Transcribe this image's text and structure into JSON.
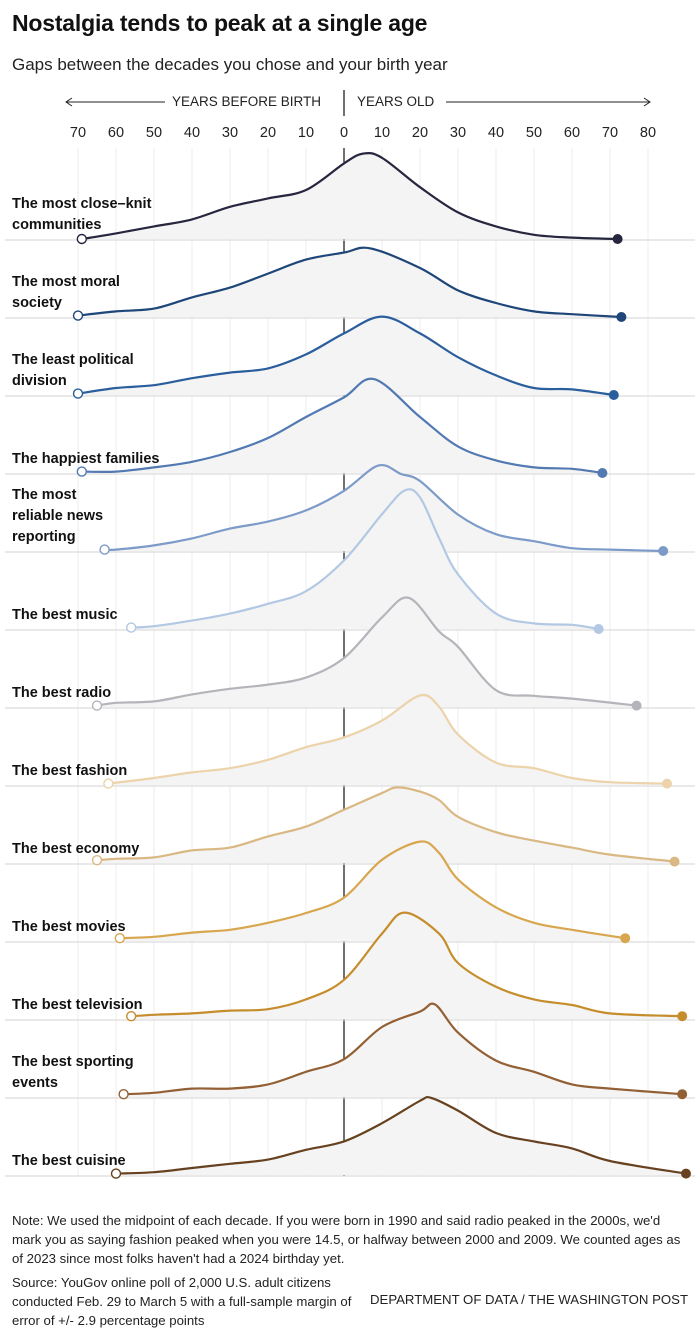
{
  "title": "Nostalgia tends to peak at a single age",
  "subtitle": "Gaps between the decades you chose and your birth year",
  "note": "Note: We used the midpoint of each decade. If you were born in 1990 and said radio peaked in the 2000s, we'd mark you as saying fashion peaked when you were 14.5, or halfway between 2000 and 2009. We counted ages as of 2023 since most folks haven't had a 2024 birthday yet.",
  "source": "Source: YouGov online poll of 2,000 U.S. adult citizens conducted Feb. 29 to March 5 with a full-sample margin of error of +/- 2.9 percentage points",
  "credit": "DEPARTMENT OF DATA / THE WASHINGTON POST",
  "chart_data": {
    "type": "area",
    "subtype": "ridgeline",
    "xlabel_left": "YEARS BEFORE BIRTH",
    "xlabel_right": "YEARS OLD",
    "xlim": [
      -70,
      80
    ],
    "x_ticks": [
      -70,
      -60,
      -50,
      -40,
      -30,
      -20,
      -10,
      0,
      10,
      20,
      30,
      40,
      50,
      60,
      70,
      80
    ],
    "x_tick_labels": [
      "70",
      "60",
      "50",
      "40",
      "30",
      "20",
      "10",
      "0",
      "10",
      "20",
      "30",
      "40",
      "50",
      "60",
      "70",
      "80"
    ],
    "y_units": "relative density (0-100, unlabeled)",
    "grid": "vertical",
    "fill_color": "#f4f4f4",
    "series": [
      {
        "name": "The most close–knit communities",
        "color": "#27263f",
        "points": [
          [
            -69,
            0
          ],
          [
            -60,
            4
          ],
          [
            -50,
            9
          ],
          [
            -40,
            14
          ],
          [
            -30,
            23
          ],
          [
            -20,
            29
          ],
          [
            -10,
            35
          ],
          [
            0,
            54
          ],
          [
            5,
            61
          ],
          [
            10,
            58
          ],
          [
            20,
            37
          ],
          [
            30,
            19
          ],
          [
            40,
            9
          ],
          [
            50,
            3
          ],
          [
            60,
            1
          ],
          [
            72,
            0
          ]
        ]
      },
      {
        "name": "The most moral society",
        "color": "#1e4678",
        "points": [
          [
            -70,
            1
          ],
          [
            -60,
            4
          ],
          [
            -50,
            6
          ],
          [
            -40,
            14
          ],
          [
            -30,
            21
          ],
          [
            -20,
            31
          ],
          [
            -10,
            41
          ],
          [
            0,
            46
          ],
          [
            7,
            49
          ],
          [
            20,
            35
          ],
          [
            30,
            19
          ],
          [
            40,
            10
          ],
          [
            50,
            4
          ],
          [
            60,
            2
          ],
          [
            73,
            0
          ]
        ]
      },
      {
        "name": "The least political division",
        "color": "#2a5e9c",
        "points": [
          [
            -70,
            1
          ],
          [
            -60,
            5
          ],
          [
            -50,
            7
          ],
          [
            -40,
            12
          ],
          [
            -30,
            16
          ],
          [
            -20,
            19
          ],
          [
            -10,
            29
          ],
          [
            0,
            44
          ],
          [
            10,
            56
          ],
          [
            20,
            44
          ],
          [
            30,
            27
          ],
          [
            40,
            14
          ],
          [
            50,
            5
          ],
          [
            60,
            4
          ],
          [
            71,
            0
          ]
        ]
      },
      {
        "name": "The happiest families",
        "color": "#5279b2",
        "points": [
          [
            -69,
            1
          ],
          [
            -60,
            1
          ],
          [
            -50,
            4
          ],
          [
            -40,
            8
          ],
          [
            -30,
            15
          ],
          [
            -20,
            25
          ],
          [
            -10,
            40
          ],
          [
            0,
            54
          ],
          [
            8,
            67
          ],
          [
            20,
            40
          ],
          [
            30,
            19
          ],
          [
            40,
            9
          ],
          [
            50,
            4
          ],
          [
            60,
            3
          ],
          [
            68,
            0
          ]
        ]
      },
      {
        "name": "The most reliable news reporting",
        "color": "#7d9bc8",
        "points": [
          [
            -63,
            1
          ],
          [
            -60,
            1
          ],
          [
            -50,
            4
          ],
          [
            -40,
            9
          ],
          [
            -30,
            16
          ],
          [
            -20,
            21
          ],
          [
            -10,
            29
          ],
          [
            0,
            43
          ],
          [
            9,
            61
          ],
          [
            15,
            55
          ],
          [
            20,
            50
          ],
          [
            30,
            26
          ],
          [
            40,
            12
          ],
          [
            50,
            7
          ],
          [
            60,
            2
          ],
          [
            70,
            1
          ],
          [
            84,
            0
          ]
        ]
      },
      {
        "name": "The best music",
        "color": "#b2c8e3",
        "points": [
          [
            -56,
            1
          ],
          [
            -50,
            2
          ],
          [
            -40,
            6
          ],
          [
            -30,
            11
          ],
          [
            -20,
            18
          ],
          [
            -10,
            27
          ],
          [
            0,
            49
          ],
          [
            10,
            82
          ],
          [
            16,
            99
          ],
          [
            20,
            94
          ],
          [
            25,
            65
          ],
          [
            30,
            39
          ],
          [
            40,
            11
          ],
          [
            50,
            4
          ],
          [
            60,
            3
          ],
          [
            67,
            0
          ]
        ]
      },
      {
        "name": "The best radio",
        "color": "#b4b4ba",
        "points": [
          [
            -65,
            1
          ],
          [
            -60,
            3
          ],
          [
            -50,
            4
          ],
          [
            -40,
            9
          ],
          [
            -30,
            13
          ],
          [
            -20,
            16
          ],
          [
            -10,
            21
          ],
          [
            0,
            35
          ],
          [
            10,
            64
          ],
          [
            17,
            78
          ],
          [
            25,
            54
          ],
          [
            30,
            43
          ],
          [
            40,
            12
          ],
          [
            50,
            8
          ],
          [
            60,
            6
          ],
          [
            77,
            1
          ]
        ]
      },
      {
        "name": "The best fashion",
        "color": "#ecd3aa",
        "points": [
          [
            -62,
            1
          ],
          [
            -50,
            5
          ],
          [
            -40,
            9
          ],
          [
            -30,
            12
          ],
          [
            -20,
            18
          ],
          [
            -10,
            27
          ],
          [
            0,
            34
          ],
          [
            10,
            46
          ],
          [
            20,
            64
          ],
          [
            25,
            56
          ],
          [
            30,
            36
          ],
          [
            40,
            16
          ],
          [
            50,
            12
          ],
          [
            60,
            5
          ],
          [
            70,
            2
          ],
          [
            85,
            1
          ]
        ]
      },
      {
        "name": "The best economy",
        "color": "#dab883",
        "points": [
          [
            -65,
            2
          ],
          [
            -60,
            3
          ],
          [
            -50,
            4
          ],
          [
            -40,
            9
          ],
          [
            -30,
            11
          ],
          [
            -20,
            19
          ],
          [
            -10,
            26
          ],
          [
            0,
            38
          ],
          [
            10,
            50
          ],
          [
            14,
            54
          ],
          [
            20,
            51
          ],
          [
            25,
            45
          ],
          [
            30,
            33
          ],
          [
            40,
            22
          ],
          [
            50,
            16
          ],
          [
            60,
            11
          ],
          [
            70,
            6
          ],
          [
            87,
            1
          ]
        ]
      },
      {
        "name": "The best movies",
        "color": "#d8a64e",
        "points": [
          [
            -59,
            2
          ],
          [
            -50,
            3
          ],
          [
            -40,
            6
          ],
          [
            -30,
            8
          ],
          [
            -20,
            13
          ],
          [
            -10,
            20
          ],
          [
            0,
            31
          ],
          [
            10,
            58
          ],
          [
            20,
            71
          ],
          [
            25,
            63
          ],
          [
            30,
            44
          ],
          [
            40,
            24
          ],
          [
            50,
            13
          ],
          [
            60,
            8
          ],
          [
            74,
            2
          ]
        ]
      },
      {
        "name": "The best television",
        "color": "#c58d2c",
        "points": [
          [
            -56,
            2
          ],
          [
            -50,
            3
          ],
          [
            -40,
            4
          ],
          [
            -30,
            6
          ],
          [
            -20,
            7
          ],
          [
            -10,
            14
          ],
          [
            0,
            28
          ],
          [
            10,
            61
          ],
          [
            16,
            76
          ],
          [
            25,
            61
          ],
          [
            30,
            40
          ],
          [
            40,
            23
          ],
          [
            50,
            14
          ],
          [
            60,
            10
          ],
          [
            70,
            4
          ],
          [
            89,
            2
          ]
        ]
      },
      {
        "name": "The best sporting events",
        "color": "#936035",
        "points": [
          [
            -58,
            2
          ],
          [
            -50,
            3
          ],
          [
            -40,
            6
          ],
          [
            -30,
            6
          ],
          [
            -20,
            9
          ],
          [
            -10,
            18
          ],
          [
            0,
            27
          ],
          [
            10,
            50
          ],
          [
            20,
            61
          ],
          [
            24,
            66
          ],
          [
            30,
            46
          ],
          [
            40,
            26
          ],
          [
            50,
            18
          ],
          [
            60,
            9
          ],
          [
            70,
            6
          ],
          [
            89,
            2
          ]
        ]
      },
      {
        "name": "The best cuisine",
        "color": "#684220",
        "points": [
          [
            -60,
            1
          ],
          [
            -50,
            2
          ],
          [
            -40,
            5
          ],
          [
            -30,
            8
          ],
          [
            -20,
            11
          ],
          [
            -10,
            18
          ],
          [
            0,
            24
          ],
          [
            10,
            37
          ],
          [
            20,
            53
          ],
          [
            23,
            55
          ],
          [
            30,
            46
          ],
          [
            40,
            30
          ],
          [
            50,
            24
          ],
          [
            60,
            19
          ],
          [
            70,
            10
          ],
          [
            90,
            1
          ]
        ]
      }
    ]
  }
}
